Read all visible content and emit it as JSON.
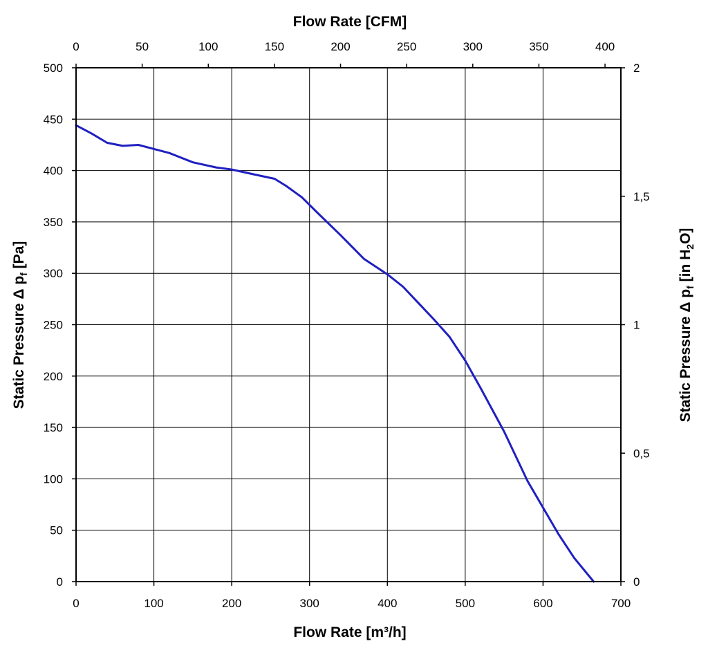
{
  "chart_data": {
    "type": "line",
    "title": "",
    "xlabel_bottom": "Flow Rate [m³/h]",
    "xlabel_top": "Flow Rate [CFM]",
    "ylabel_left": {
      "main": "Static Pressure Δ p",
      "sub": "f",
      "unit": " [Pa]"
    },
    "ylabel_right": {
      "main": "Static Pressure Δ p",
      "sub": "f",
      "unit_pre": " [in H",
      "unit_sub": "2",
      "unit_post": "O]"
    },
    "xlim": [
      0,
      700
    ],
    "ylim": [
      0,
      500
    ],
    "xlim_top": [
      0,
      412
    ],
    "ylim_right": [
      0,
      2
    ],
    "x_ticks": [
      0,
      100,
      200,
      300,
      400,
      500,
      600,
      700
    ],
    "y_ticks": [
      0,
      50,
      100,
      150,
      200,
      250,
      300,
      350,
      400,
      450,
      500
    ],
    "x_top_ticks": [
      0,
      50,
      100,
      150,
      200,
      250,
      300,
      350,
      400
    ],
    "y_right_ticks": [
      "0",
      "0,5",
      "1",
      "1,5",
      "2"
    ],
    "y_right_values": [
      0,
      0.5,
      1,
      1.5,
      2
    ],
    "grid": true,
    "line_color": "#2020c0",
    "series": [
      {
        "x": [
          0,
          20,
          40,
          60,
          80,
          100,
          120,
          150,
          180,
          200,
          230,
          255,
          270,
          290,
          310,
          340,
          370,
          400,
          420,
          440,
          460,
          480,
          500,
          520,
          550,
          580,
          600,
          620,
          640,
          665
        ],
        "y": [
          444,
          436,
          427,
          424,
          425,
          421,
          417,
          408,
          403,
          401,
          396,
          392,
          385,
          374,
          359,
          337,
          314,
          299,
          287,
          271,
          255,
          238,
          215,
          188,
          146,
          98,
          72,
          46,
          23,
          0
        ]
      }
    ]
  }
}
